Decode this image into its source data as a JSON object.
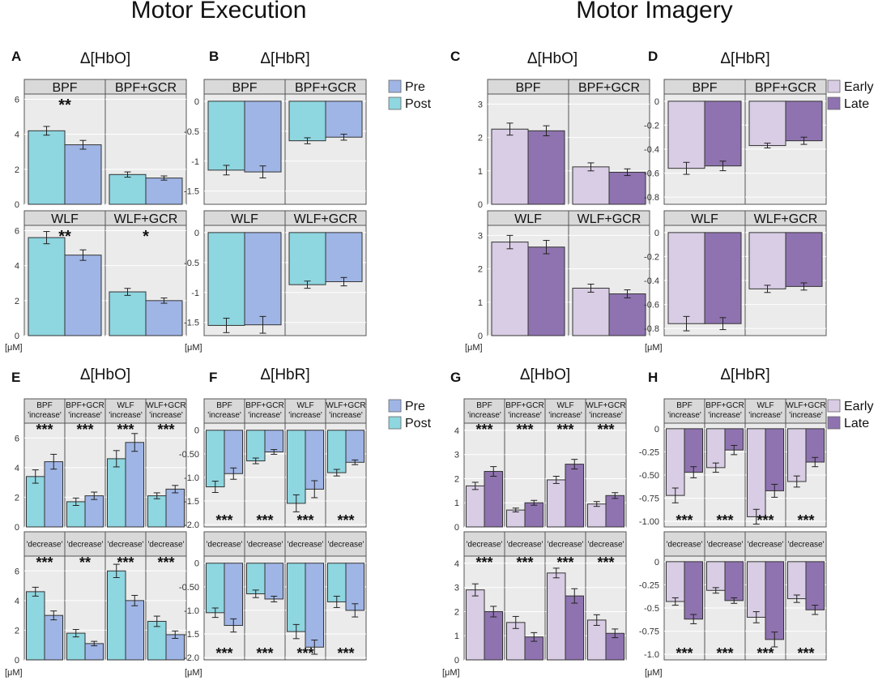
{
  "figure": {
    "titles": {
      "execution": "Motor Execution",
      "imagery": "Motor Imagery"
    },
    "unit": "[μM]",
    "legends": {
      "prepost": {
        "items": [
          {
            "label": "Pre",
            "color": "#9fb5e6"
          },
          {
            "label": "Post",
            "color": "#8ed6e0"
          }
        ]
      },
      "earlylate": {
        "items": [
          {
            "label": "Early",
            "color": "#d8cde4"
          },
          {
            "label": "Late",
            "color": "#8f73b0"
          }
        ]
      }
    }
  },
  "chart_data": [
    {
      "id": "A",
      "letter": "A",
      "title": "Δ[HbO]",
      "type": "bar",
      "ylim": [
        0,
        6.3
      ],
      "ticks": [
        0,
        2,
        4,
        6
      ],
      "colors": [
        "#8ed6e0",
        "#9fb5e6"
      ],
      "rows": [
        [
          {
            "strip": [
              "BPF"
            ],
            "values": [
              4.2,
              3.4
            ],
            "errors": [
              0.25,
              0.25
            ],
            "sig_top": "**"
          },
          {
            "strip": [
              "BPF+GCR"
            ],
            "values": [
              1.7,
              1.5
            ],
            "errors": [
              0.15,
              0.12
            ],
            "sig_top": ""
          }
        ],
        [
          {
            "strip": [
              "WLF"
            ],
            "values": [
              5.6,
              4.6
            ],
            "errors": [
              0.35,
              0.3
            ],
            "sig_top": "**"
          },
          {
            "strip": [
              "WLF+GCR"
            ],
            "values": [
              2.5,
              2.0
            ],
            "errors": [
              0.2,
              0.15
            ],
            "sig_top": "*"
          }
        ]
      ]
    },
    {
      "id": "B",
      "letter": "B",
      "title": "Δ[HbR]",
      "type": "bar",
      "ylim": [
        -1.72,
        0.12
      ],
      "ticks": [
        0,
        -0.5,
        -1.0,
        -1.5
      ],
      "colors": [
        "#8ed6e0",
        "#9fb5e6"
      ],
      "rows": [
        [
          {
            "strip": [
              "BPF"
            ],
            "values": [
              -1.15,
              -1.18
            ],
            "errors": [
              0.08,
              0.1
            ]
          },
          {
            "strip": [
              "BPF+GCR"
            ],
            "values": [
              -0.66,
              -0.6
            ],
            "errors": [
              0.05,
              0.05
            ]
          }
        ],
        [
          {
            "strip": [
              "WLF"
            ],
            "values": [
              -1.55,
              -1.54
            ],
            "errors": [
              0.12,
              0.14
            ]
          },
          {
            "strip": [
              "WLF+GCR"
            ],
            "values": [
              -0.87,
              -0.82
            ],
            "errors": [
              0.06,
              0.07
            ]
          }
        ]
      ]
    },
    {
      "id": "C",
      "letter": "C",
      "title": "Δ[HbO]",
      "type": "bar",
      "ylim": [
        0,
        3.3
      ],
      "ticks": [
        0,
        1,
        2,
        3
      ],
      "colors": [
        "#d8cde4",
        "#8f73b0"
      ],
      "rows": [
        [
          {
            "strip": [
              "BPF"
            ],
            "values": [
              2.25,
              2.2
            ],
            "errors": [
              0.18,
              0.15
            ]
          },
          {
            "strip": [
              "BPF+GCR"
            ],
            "values": [
              1.12,
              0.96
            ],
            "errors": [
              0.12,
              0.1
            ]
          }
        ],
        [
          {
            "strip": [
              "WLF"
            ],
            "values": [
              2.8,
              2.65
            ],
            "errors": [
              0.2,
              0.2
            ]
          },
          {
            "strip": [
              "WLF+GCR"
            ],
            "values": [
              1.42,
              1.25
            ],
            "errors": [
              0.12,
              0.12
            ]
          }
        ]
      ]
    },
    {
      "id": "D",
      "letter": "D",
      "title": "Δ[HbR]",
      "type": "bar",
      "ylim": [
        -0.86,
        0.06
      ],
      "ticks": [
        0,
        -0.2,
        -0.4,
        -0.6,
        -0.8
      ],
      "colors": [
        "#d8cde4",
        "#8f73b0"
      ],
      "rows": [
        [
          {
            "strip": [
              "BPF"
            ],
            "values": [
              -0.56,
              -0.54
            ],
            "errors": [
              0.05,
              0.04
            ]
          },
          {
            "strip": [
              "BPF+GCR"
            ],
            "values": [
              -0.37,
              -0.33
            ],
            "errors": [
              0.02,
              0.03
            ]
          }
        ],
        [
          {
            "strip": [
              "WLF"
            ],
            "values": [
              -0.76,
              -0.76
            ],
            "errors": [
              0.06,
              0.05
            ]
          },
          {
            "strip": [
              "WLF+GCR"
            ],
            "values": [
              -0.47,
              -0.45
            ],
            "errors": [
              0.03,
              0.03
            ]
          }
        ]
      ]
    },
    {
      "id": "E",
      "letter": "E",
      "title": "Δ[HbO]",
      "type": "bar",
      "ylim": [
        0,
        7.0
      ],
      "ticks": [
        0,
        2,
        4,
        6
      ],
      "colors": [
        "#8ed6e0",
        "#9fb5e6"
      ],
      "rows": [
        [
          {
            "strip": [
              "BPF",
              "'increase'"
            ],
            "values": [
              3.4,
              4.4
            ],
            "errors": [
              0.45,
              0.5
            ],
            "sig_top": "***"
          },
          {
            "strip": [
              "BPF+GCR",
              "'increase'"
            ],
            "values": [
              1.7,
              2.1
            ],
            "errors": [
              0.25,
              0.25
            ],
            "sig_top": "***"
          },
          {
            "strip": [
              "WLF",
              "'increase'"
            ],
            "values": [
              4.6,
              5.7
            ],
            "errors": [
              0.55,
              0.6
            ],
            "sig_top": "***"
          },
          {
            "strip": [
              "WLF+GCR",
              "'increase'"
            ],
            "values": [
              2.1,
              2.55
            ],
            "errors": [
              0.2,
              0.25
            ],
            "sig_top": "***"
          }
        ],
        [
          {
            "strip": [
              "'decrease'"
            ],
            "values": [
              4.6,
              3.0
            ],
            "errors": [
              0.3,
              0.3
            ],
            "sig_top": "***"
          },
          {
            "strip": [
              "'decrease'"
            ],
            "values": [
              1.8,
              1.1
            ],
            "errors": [
              0.25,
              0.15
            ],
            "sig_top": "**"
          },
          {
            "strip": [
              "'decrease'"
            ],
            "values": [
              6.0,
              4.0
            ],
            "errors": [
              0.45,
              0.35
            ],
            "sig_top": "***"
          },
          {
            "strip": [
              "'decrease'"
            ],
            "values": [
              2.6,
              1.7
            ],
            "errors": [
              0.35,
              0.25
            ],
            "sig_top": "***"
          }
        ]
      ]
    },
    {
      "id": "F",
      "letter": "F",
      "title": "Δ[HbR]",
      "type": "bar",
      "ylim": [
        -2.05,
        0.15
      ],
      "ticks": [
        0,
        -0.5,
        -1.0,
        -1.5,
        -2.0
      ],
      "tick_labels": [
        "0",
        "-0.50",
        "-1.0",
        "-1.5",
        "-2.0"
      ],
      "colors": [
        "#8ed6e0",
        "#9fb5e6"
      ],
      "rows": [
        [
          {
            "strip": [
              "BPF",
              "'increase'"
            ],
            "values": [
              -1.2,
              -0.92
            ],
            "errors": [
              0.12,
              0.12
            ],
            "sig_bottom": "***"
          },
          {
            "strip": [
              "BPF+GCR",
              "'increase'"
            ],
            "values": [
              -0.65,
              -0.46
            ],
            "errors": [
              0.06,
              0.05
            ],
            "sig_bottom": "***"
          },
          {
            "strip": [
              "WLF",
              "'increase'"
            ],
            "values": [
              -1.55,
              -1.25
            ],
            "errors": [
              0.18,
              0.18
            ],
            "sig_bottom": "***"
          },
          {
            "strip": [
              "WLF+GCR",
              "'increase'"
            ],
            "values": [
              -0.9,
              -0.68
            ],
            "errors": [
              0.07,
              0.05
            ],
            "sig_bottom": "***"
          }
        ],
        [
          {
            "strip": [
              "'decrease'"
            ],
            "values": [
              -1.05,
              -1.32
            ],
            "errors": [
              0.1,
              0.14
            ],
            "sig_bottom": "***"
          },
          {
            "strip": [
              "'decrease'"
            ],
            "values": [
              -0.65,
              -0.76
            ],
            "errors": [
              0.08,
              0.06
            ],
            "sig_bottom": "***"
          },
          {
            "strip": [
              "'decrease'"
            ],
            "values": [
              -1.45,
              -1.78
            ],
            "errors": [
              0.15,
              0.15
            ],
            "sig_bottom": "***"
          },
          {
            "strip": [
              "'decrease'"
            ],
            "values": [
              -0.82,
              -1.0
            ],
            "errors": [
              0.12,
              0.14
            ],
            "sig_bottom": "***"
          }
        ]
      ]
    },
    {
      "id": "G",
      "letter": "G",
      "title": "Δ[HbO]",
      "type": "bar",
      "ylim": [
        0,
        4.3
      ],
      "ticks": [
        0,
        1,
        2,
        3,
        4
      ],
      "colors": [
        "#d8cde4",
        "#8f73b0"
      ],
      "rows": [
        [
          {
            "strip": [
              "BPF",
              "'increase'"
            ],
            "values": [
              1.7,
              2.3
            ],
            "errors": [
              0.15,
              0.2
            ],
            "sig_top": "***"
          },
          {
            "strip": [
              "BPF+GCR",
              "'increase'"
            ],
            "values": [
              0.7,
              1.0
            ],
            "errors": [
              0.08,
              0.1
            ],
            "sig_top": "***"
          },
          {
            "strip": [
              "WLF",
              "'increase'"
            ],
            "values": [
              1.95,
              2.6
            ],
            "errors": [
              0.15,
              0.2
            ],
            "sig_top": "***"
          },
          {
            "strip": [
              "WLF+GCR",
              "'increase'"
            ],
            "values": [
              0.95,
              1.3
            ],
            "errors": [
              0.1,
              0.12
            ],
            "sig_top": "***"
          }
        ],
        [
          {
            "strip": [
              "'decrease'"
            ],
            "values": [
              2.9,
              2.0
            ],
            "errors": [
              0.25,
              0.22
            ],
            "sig_top": "***"
          },
          {
            "strip": [
              "'decrease'"
            ],
            "values": [
              1.55,
              0.95
            ],
            "errors": [
              0.25,
              0.18
            ],
            "sig_top": "***"
          },
          {
            "strip": [
              "'decrease'"
            ],
            "values": [
              3.6,
              2.65
            ],
            "errors": [
              0.2,
              0.3
            ],
            "sig_top": "***"
          },
          {
            "strip": [
              "'decrease'"
            ],
            "values": [
              1.65,
              1.1
            ],
            "errors": [
              0.22,
              0.18
            ],
            "sig_top": "***"
          }
        ]
      ]
    },
    {
      "id": "H",
      "letter": "H",
      "title": "Δ[HbR]",
      "type": "bar",
      "ylim": [
        -1.06,
        0.06
      ],
      "ticks": [
        0,
        -0.25,
        -0.5,
        -0.75,
        -1.0
      ],
      "tick_labels": [
        "0",
        "-0.25",
        "-0.50",
        "-0.75",
        "-1.00"
      ],
      "tick_labels_alt": [
        "0",
        "-0.25",
        "-0.5",
        "-0.75",
        "-1.0"
      ],
      "colors": [
        "#d8cde4",
        "#8f73b0"
      ],
      "rows": [
        [
          {
            "strip": [
              "BPF",
              "'increase'"
            ],
            "values": [
              -0.72,
              -0.47
            ],
            "errors": [
              0.08,
              0.06
            ],
            "sig_bottom": "***"
          },
          {
            "strip": [
              "BPF+GCR",
              "'increase'"
            ],
            "values": [
              -0.42,
              -0.23
            ],
            "errors": [
              0.05,
              0.05
            ],
            "sig_bottom": "***"
          },
          {
            "strip": [
              "WLF",
              "'increase'"
            ],
            "values": [
              -0.95,
              -0.67
            ],
            "errors": [
              0.08,
              0.07
            ],
            "sig_bottom": "***"
          },
          {
            "strip": [
              "WLF+GCR",
              "'increase'"
            ],
            "values": [
              -0.57,
              -0.36
            ],
            "errors": [
              0.06,
              0.05
            ],
            "sig_bottom": "***"
          }
        ],
        [
          {
            "strip": [
              "'decrease'"
            ],
            "values": [
              -0.43,
              -0.62
            ],
            "errors": [
              0.04,
              0.05
            ],
            "sig_bottom": "***"
          },
          {
            "strip": [
              "'decrease'"
            ],
            "values": [
              -0.31,
              -0.42
            ],
            "errors": [
              0.03,
              0.03
            ],
            "sig_bottom": "***"
          },
          {
            "strip": [
              "'decrease'"
            ],
            "values": [
              -0.6,
              -0.84
            ],
            "errors": [
              0.06,
              0.08
            ],
            "sig_bottom": "***"
          },
          {
            "strip": [
              "'decrease'"
            ],
            "values": [
              -0.4,
              -0.52
            ],
            "errors": [
              0.04,
              0.05
            ],
            "sig_bottom": "***"
          }
        ]
      ]
    }
  ]
}
